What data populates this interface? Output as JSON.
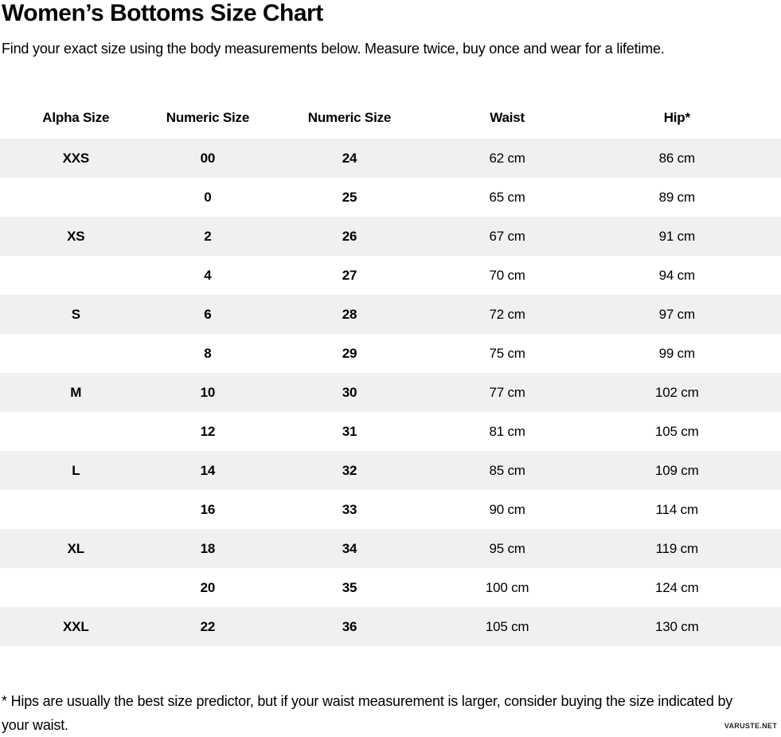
{
  "page": {
    "title": "Women’s Bottoms Size Chart",
    "subtitle": "Find your exact size using the body measurements below. Measure twice, buy once and wear for a lifetime.",
    "footnote": "* Hips are usually the best size predictor, but if your waist measurement is larger, consider buying the size indicated by your waist.",
    "watermark": "VARUSTE.NET"
  },
  "colors": {
    "row_alt_bg": "#f0f0f0",
    "text": "#000000",
    "background": "#ffffff"
  },
  "table": {
    "columns": [
      "Alpha Size",
      "Numeric Size",
      "Numeric Size",
      "Waist",
      "Hip*"
    ],
    "column_widths_pct": [
      18.0,
      17.2,
      19.1,
      21.3,
      24.4
    ],
    "bold_column_count": 3,
    "rows": [
      [
        "XXS",
        "00",
        "24",
        "62 cm",
        "86 cm"
      ],
      [
        "",
        "0",
        "25",
        "65 cm",
        "89 cm"
      ],
      [
        "XS",
        "2",
        "26",
        "67 cm",
        "91 cm"
      ],
      [
        "",
        "4",
        "27",
        "70 cm",
        "94 cm"
      ],
      [
        "S",
        "6",
        "28",
        "72 cm",
        "97 cm"
      ],
      [
        "",
        "8",
        "29",
        "75 cm",
        "99 cm"
      ],
      [
        "M",
        "10",
        "30",
        "77 cm",
        "102 cm"
      ],
      [
        "",
        "12",
        "31",
        "81 cm",
        "105 cm"
      ],
      [
        "L",
        "14",
        "32",
        "85 cm",
        "109 cm"
      ],
      [
        "",
        "16",
        "33",
        "90 cm",
        "114 cm"
      ],
      [
        "XL",
        "18",
        "34",
        "95 cm",
        "119 cm"
      ],
      [
        "",
        "20",
        "35",
        "100 cm",
        "124 cm"
      ],
      [
        "XXL",
        "22",
        "36",
        "105 cm",
        "130 cm"
      ]
    ]
  }
}
